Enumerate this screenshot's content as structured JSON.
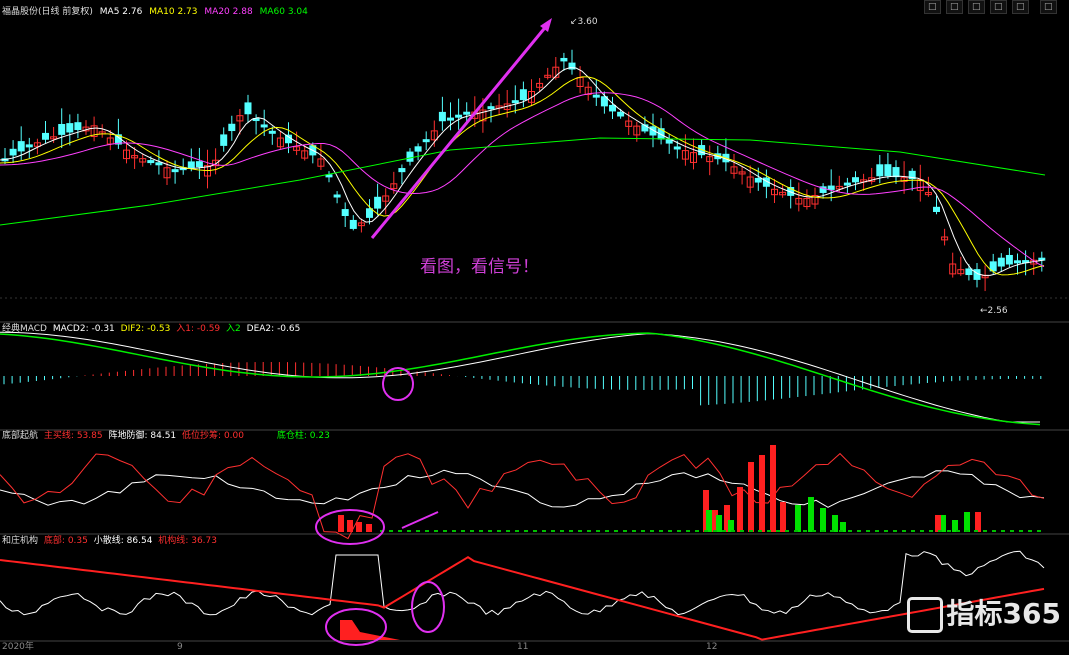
{
  "header": {
    "stock_title": "福晶股份(日线 前复权)",
    "ma": [
      {
        "label": "MA5",
        "value": "2.76",
        "color": "#ffffff"
      },
      {
        "label": "MA10",
        "value": "2.73",
        "color": "#ffff00"
      },
      {
        "label": "MA20",
        "value": "2.88",
        "color": "#ff40ff"
      },
      {
        "label": "MA60",
        "value": "3.04",
        "color": "#00ff00"
      }
    ],
    "toolbar": [
      "□",
      "□",
      "□",
      "□",
      "□",
      "□"
    ]
  },
  "price": {
    "high_label": "3.60",
    "low_label": "2.56",
    "annotation": "看图，看信号！"
  },
  "macd": {
    "name": "经典MACD",
    "items": [
      {
        "label": "MACD2",
        "value": "-0.31",
        "color": "#ffffff"
      },
      {
        "label": "DIF2",
        "value": "-0.53",
        "color": "#ffff00"
      },
      {
        "label": "入1",
        "value": "-0.59",
        "color": "#ff3030"
      },
      {
        "label": "入2",
        "value": "",
        "color": "#00ff00"
      },
      {
        "label": "DEA2",
        "value": "-0.65",
        "color": "#ffffff"
      }
    ]
  },
  "bottom_signal": {
    "name": "底部起航",
    "items": [
      {
        "label": "主买线",
        "value": "53.85",
        "color": "#ff3030"
      },
      {
        "label": "阵地防御",
        "value": "84.51",
        "color": "#ffffff"
      },
      {
        "label": "低位抄筹",
        "value": "0.00",
        "color": "#ff3030"
      },
      {
        "label": "底仓柱",
        "value": "0.23",
        "color": "#00ff00"
      }
    ]
  },
  "banker": {
    "name": "和庄机构",
    "items": [
      {
        "label": "底部",
        "value": "0.35",
        "color": "#ff3030"
      },
      {
        "label": "小散线",
        "value": "86.54",
        "color": "#ffffff"
      },
      {
        "label": "机构线",
        "value": "36.73",
        "color": "#ff3030"
      }
    ]
  },
  "xaxis": {
    "year": "2020年",
    "ticks": [
      "9",
      "11",
      "12"
    ]
  },
  "watermark": "指标365"
}
